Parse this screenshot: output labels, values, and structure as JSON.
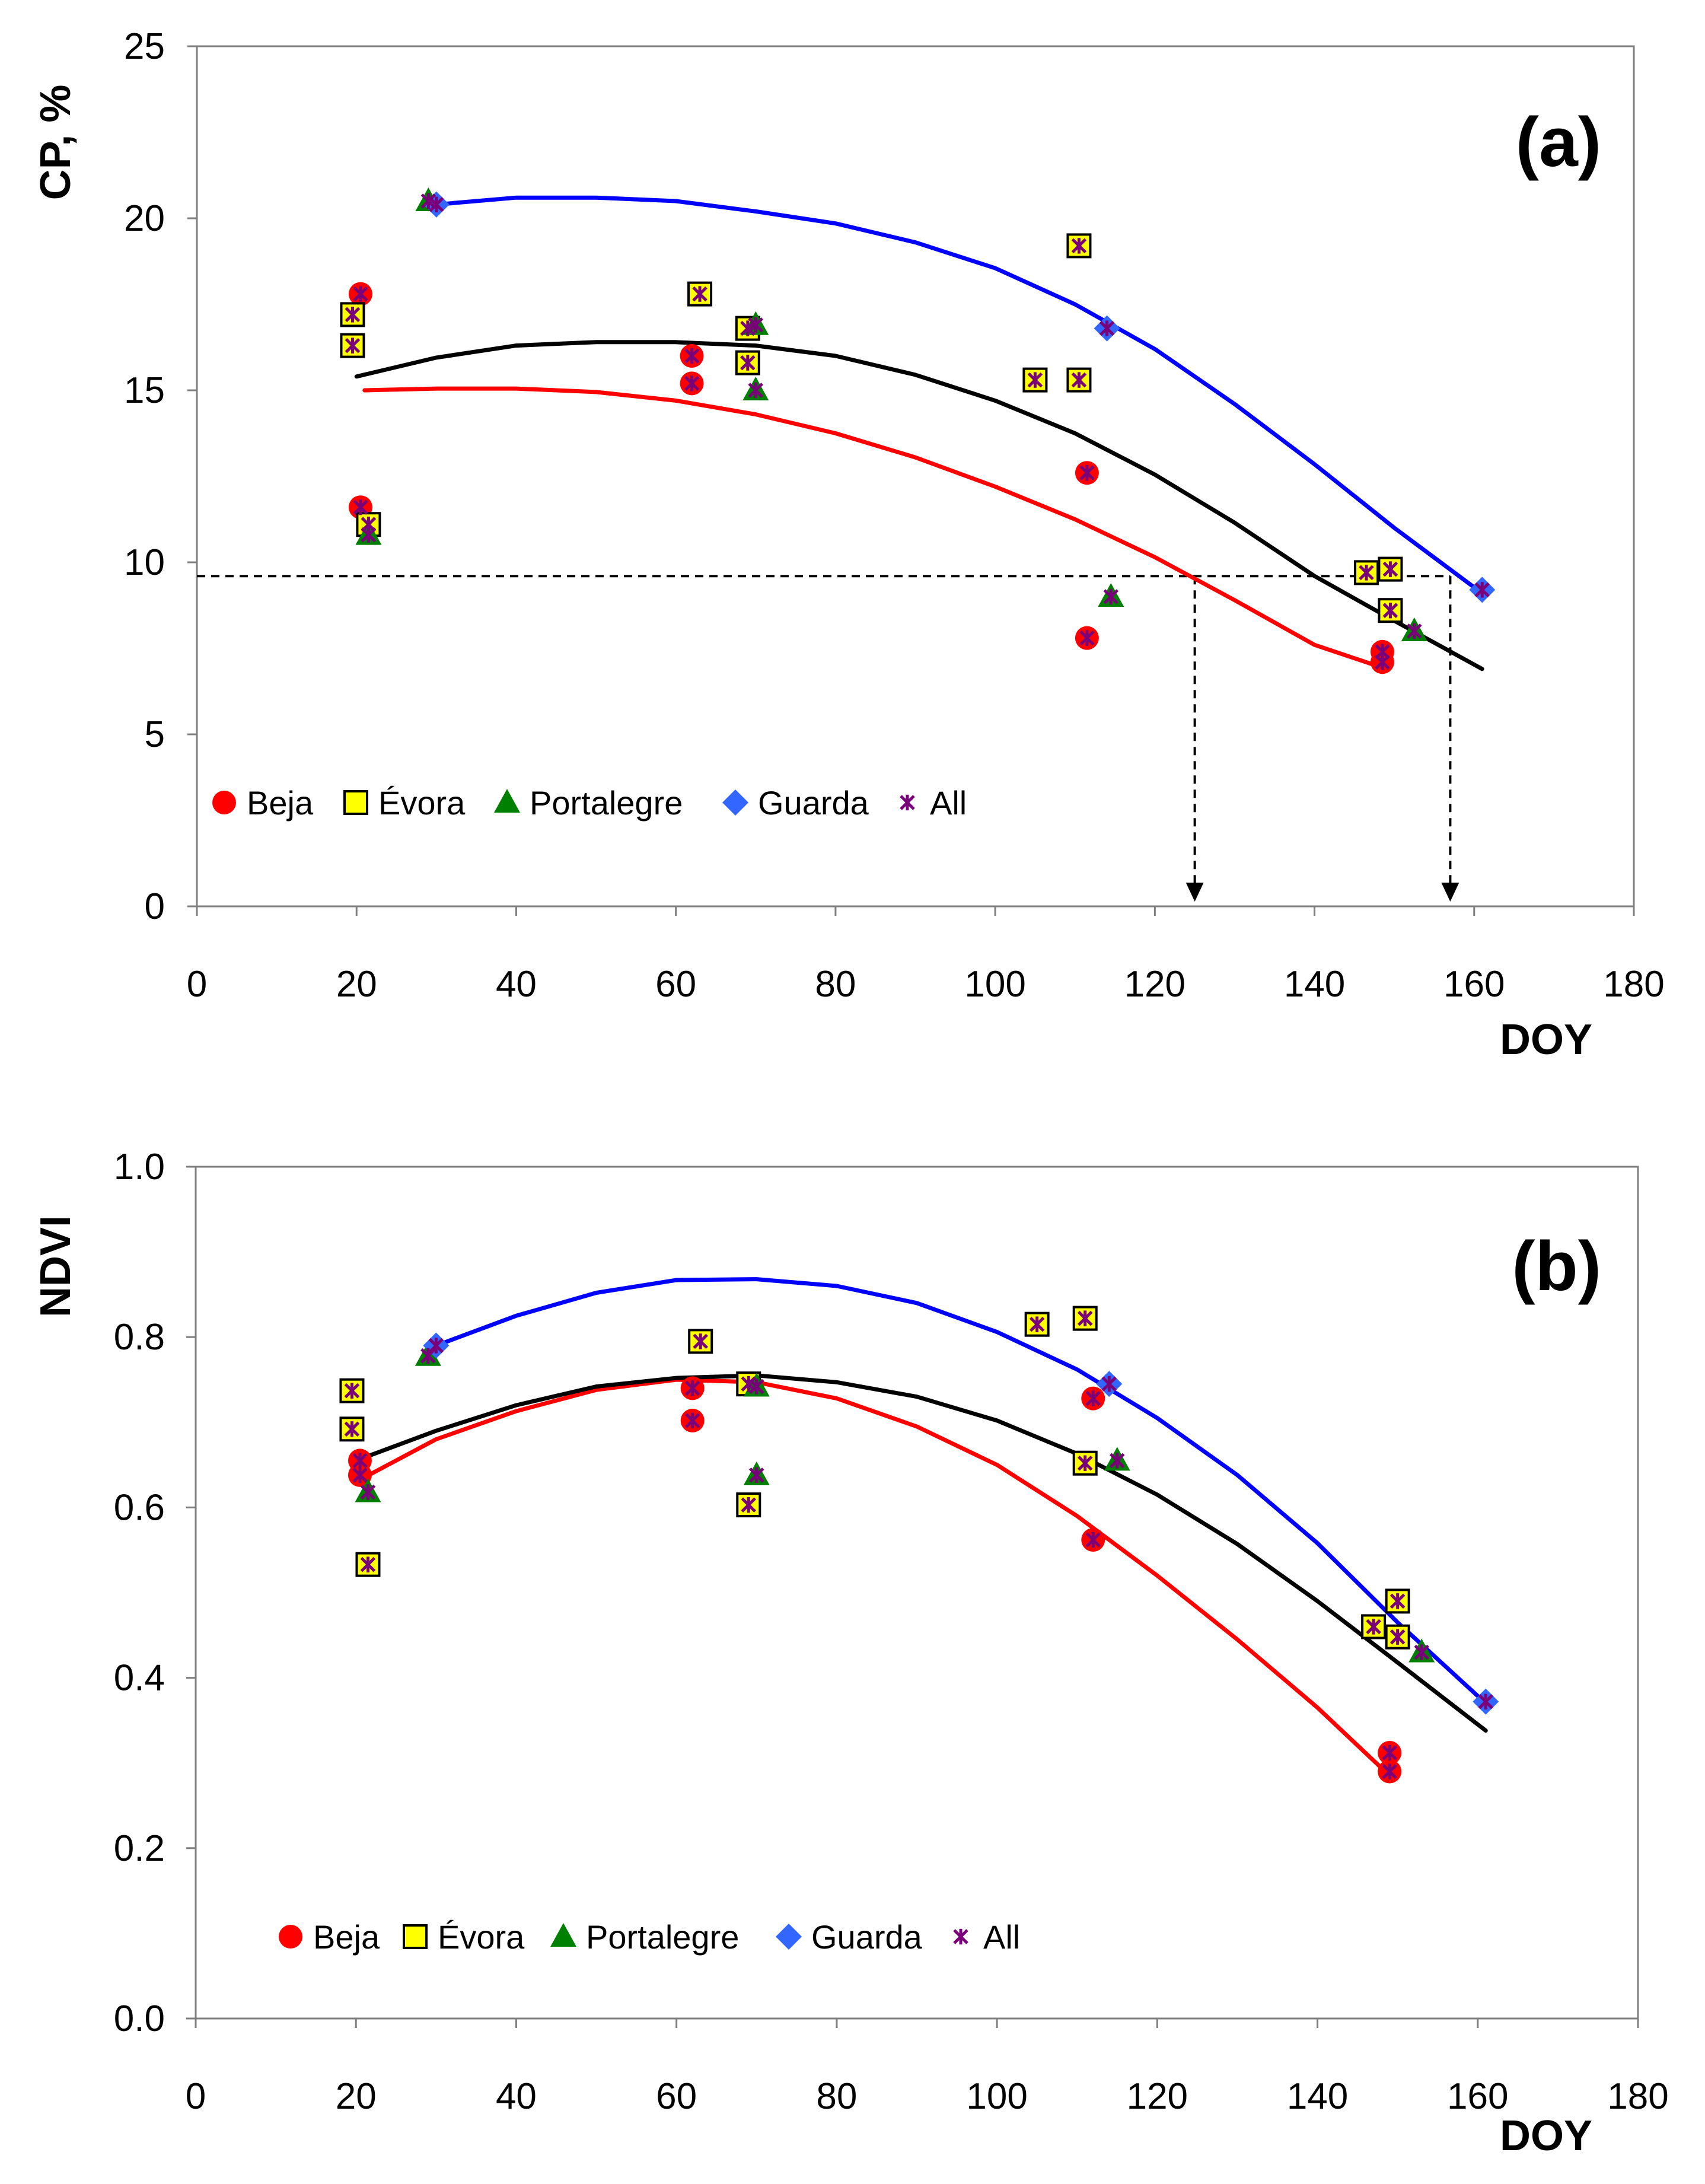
{
  "chart_data": [
    {
      "type": "scatter",
      "panel_label": "(a)",
      "ylabel": "CP, %",
      "xlabel": "DOY",
      "xlim": [
        0,
        180
      ],
      "ylim": [
        0,
        25
      ],
      "xticks": [
        "0",
        "20",
        "40",
        "60",
        "80",
        "100",
        "120",
        "140",
        "160",
        "180"
      ],
      "yticks": [
        "0",
        "5",
        "10",
        "15",
        "20",
        "25"
      ],
      "legend": [
        {
          "name": "Beja",
          "marker": "circle",
          "color": "#ff0000"
        },
        {
          "name": "Évora",
          "marker": "square",
          "color": "#ffff00"
        },
        {
          "name": "Portalegre",
          "marker": "triangle",
          "color": "#008000"
        },
        {
          "name": "Guarda",
          "marker": "diamond",
          "color": "#3366ff"
        },
        {
          "name": "All",
          "marker": "star",
          "color": "#7a007a"
        }
      ],
      "series": [
        {
          "name": "Beja",
          "points": [
            [
              20.5,
              17.8
            ],
            [
              20.5,
              11.6
            ],
            [
              62,
              16
            ],
            [
              62,
              15.2
            ],
            [
              111.5,
              12.6
            ],
            [
              111.5,
              7.8
            ],
            [
              148.5,
              7.4
            ],
            [
              148.5,
              7.1
            ]
          ]
        },
        {
          "name": "Évora",
          "points": [
            [
              19.5,
              17.2
            ],
            [
              19.5,
              16.3
            ],
            [
              21.5,
              11.1
            ],
            [
              63,
              17.8
            ],
            [
              69,
              16.8
            ],
            [
              69,
              15.8
            ],
            [
              105,
              15.3
            ],
            [
              110.5,
              19.2
            ],
            [
              110.5,
              15.3
            ],
            [
              146.5,
              9.7
            ],
            [
              149.5,
              9.8
            ],
            [
              149.5,
              8.6
            ]
          ]
        },
        {
          "name": "Portalegre",
          "points": [
            [
              21.5,
              10.8
            ],
            [
              29,
              20.5
            ],
            [
              70,
              16.9
            ],
            [
              70,
              15
            ],
            [
              114.5,
              9
            ],
            [
              152.5,
              8
            ]
          ]
        },
        {
          "name": "Guarda",
          "points": [
            [
              30,
              20.4
            ],
            [
              114,
              16.8
            ],
            [
              161,
              9.2
            ]
          ]
        },
        {
          "name": "All",
          "points": [
            [
              20.5,
              17.8
            ],
            [
              20.5,
              11.6
            ],
            [
              62,
              16
            ],
            [
              62,
              15.2
            ],
            [
              111.5,
              12.6
            ],
            [
              111.5,
              7.8
            ],
            [
              148.5,
              7.4
            ],
            [
              148.5,
              7.1
            ],
            [
              19.5,
              17.2
            ],
            [
              19.5,
              16.3
            ],
            [
              21.5,
              11.1
            ],
            [
              63,
              17.8
            ],
            [
              69,
              16.8
            ],
            [
              69,
              15.8
            ],
            [
              105,
              15.3
            ],
            [
              110.5,
              19.2
            ],
            [
              110.5,
              15.3
            ],
            [
              146.5,
              9.7
            ],
            [
              149.5,
              9.8
            ],
            [
              149.5,
              8.6
            ],
            [
              21.5,
              10.8
            ],
            [
              29,
              20.5
            ],
            [
              70,
              16.9
            ],
            [
              70,
              15
            ],
            [
              114.5,
              9
            ],
            [
              152.5,
              8
            ],
            [
              30,
              20.4
            ],
            [
              114,
              16.8
            ],
            [
              161,
              9.2
            ]
          ]
        }
      ],
      "trendlines": [
        {
          "name": "Beja",
          "color": "#ff0000",
          "points": [
            [
              21,
              15
            ],
            [
              30,
              15.05
            ],
            [
              40,
              15.05
            ],
            [
              50,
              14.95
            ],
            [
              60,
              14.7
            ],
            [
              70,
              14.3
            ],
            [
              80,
              13.75
            ],
            [
              90,
              13.05
            ],
            [
              100,
              12.2
            ],
            [
              110,
              11.25
            ],
            [
              120,
              10.15
            ],
            [
              130,
              8.9
            ],
            [
              140,
              7.6
            ],
            [
              149,
              6.9
            ]
          ]
        },
        {
          "name": "Guarda",
          "color": "#0000ff",
          "points": [
            [
              30,
              20.4
            ],
            [
              40,
              20.6
            ],
            [
              50,
              20.6
            ],
            [
              60,
              20.5
            ],
            [
              70,
              20.2
            ],
            [
              80,
              19.85
            ],
            [
              90,
              19.3
            ],
            [
              100,
              18.55
            ],
            [
              110,
              17.5
            ],
            [
              120,
              16.2
            ],
            [
              130,
              14.6
            ],
            [
              140,
              12.85
            ],
            [
              150,
              11
            ],
            [
              161,
              9.1
            ]
          ]
        },
        {
          "name": "All",
          "color": "#000000",
          "points": [
            [
              20,
              15.4
            ],
            [
              30,
              15.95
            ],
            [
              40,
              16.3
            ],
            [
              50,
              16.4
            ],
            [
              60,
              16.4
            ],
            [
              70,
              16.3
            ],
            [
              80,
              16
            ],
            [
              90,
              15.45
            ],
            [
              100,
              14.7
            ],
            [
              110,
              13.75
            ],
            [
              120,
              12.55
            ],
            [
              130,
              11.15
            ],
            [
              140,
              9.6
            ],
            [
              150,
              8.3
            ],
            [
              161,
              6.9
            ]
          ]
        }
      ],
      "reference_lines": {
        "threshold_y": 9.6,
        "drop_x": [
          125,
          157
        ]
      }
    },
    {
      "type": "scatter",
      "panel_label": "(b)",
      "ylabel": "NDVI",
      "xlabel": "DOY",
      "xlim": [
        0,
        180
      ],
      "ylim": [
        0,
        1
      ],
      "xticks": [
        "0",
        "20",
        "40",
        "60",
        "80",
        "100",
        "120",
        "140",
        "160",
        "180"
      ],
      "yticks": [
        "0.0",
        "0.2",
        "0.4",
        "0.6",
        "0.8",
        "1.0"
      ],
      "legend": [
        {
          "name": "Beja",
          "marker": "circle",
          "color": "#ff0000"
        },
        {
          "name": "Évora",
          "marker": "square",
          "color": "#ffff00"
        },
        {
          "name": "Portalegre",
          "marker": "triangle",
          "color": "#008000"
        },
        {
          "name": "Guarda",
          "marker": "diamond",
          "color": "#3366ff"
        },
        {
          "name": "All",
          "marker": "star",
          "color": "#7a007a"
        }
      ],
      "series": [
        {
          "name": "Beja",
          "points": [
            [
              20.5,
              0.655
            ],
            [
              20.5,
              0.638
            ],
            [
              62,
              0.74
            ],
            [
              62,
              0.702
            ],
            [
              112,
              0.728
            ],
            [
              112,
              0.562
            ],
            [
              149,
              0.312
            ],
            [
              149,
              0.29
            ]
          ]
        },
        {
          "name": "Évora",
          "points": [
            [
              19.5,
              0.737
            ],
            [
              19.5,
              0.692
            ],
            [
              21.5,
              0.533
            ],
            [
              63,
              0.795
            ],
            [
              69,
              0.745
            ],
            [
              69,
              0.603
            ],
            [
              105,
              0.815
            ],
            [
              111,
              0.822
            ],
            [
              111,
              0.652
            ],
            [
              147,
              0.46
            ],
            [
              150,
              0.49
            ],
            [
              150,
              0.448
            ]
          ]
        },
        {
          "name": "Portalegre",
          "points": [
            [
              21.5,
              0.618
            ],
            [
              29,
              0.778
            ],
            [
              70,
              0.742
            ],
            [
              70,
              0.638
            ],
            [
              115,
              0.655
            ],
            [
              153,
              0.43
            ]
          ]
        },
        {
          "name": "Guarda",
          "points": [
            [
              30,
              0.79
            ],
            [
              114,
              0.745
            ],
            [
              161,
              0.372
            ]
          ]
        },
        {
          "name": "All",
          "points": [
            [
              20.5,
              0.655
            ],
            [
              20.5,
              0.638
            ],
            [
              62,
              0.74
            ],
            [
              62,
              0.702
            ],
            [
              112,
              0.728
            ],
            [
              112,
              0.562
            ],
            [
              149,
              0.312
            ],
            [
              149,
              0.29
            ],
            [
              19.5,
              0.737
            ],
            [
              19.5,
              0.692
            ],
            [
              21.5,
              0.533
            ],
            [
              63,
              0.795
            ],
            [
              69,
              0.745
            ],
            [
              69,
              0.603
            ],
            [
              105,
              0.815
            ],
            [
              111,
              0.822
            ],
            [
              111,
              0.652
            ],
            [
              147,
              0.46
            ],
            [
              150,
              0.49
            ],
            [
              150,
              0.448
            ],
            [
              21.5,
              0.618
            ],
            [
              29,
              0.778
            ],
            [
              70,
              0.742
            ],
            [
              70,
              0.638
            ],
            [
              115,
              0.655
            ],
            [
              153,
              0.43
            ],
            [
              30,
              0.79
            ],
            [
              114,
              0.745
            ],
            [
              161,
              0.372
            ]
          ]
        }
      ],
      "trendlines": [
        {
          "name": "Beja",
          "color": "#ff0000",
          "points": [
            [
              21,
              0.635
            ],
            [
              30,
              0.68
            ],
            [
              40,
              0.713
            ],
            [
              50,
              0.738
            ],
            [
              60,
              0.75
            ],
            [
              70,
              0.747
            ],
            [
              80,
              0.728
            ],
            [
              90,
              0.695
            ],
            [
              100,
              0.65
            ],
            [
              110,
              0.59
            ],
            [
              120,
              0.52
            ],
            [
              130,
              0.445
            ],
            [
              140,
              0.365
            ],
            [
              149,
              0.285
            ]
          ]
        },
        {
          "name": "Guarda",
          "color": "#0000ff",
          "points": [
            [
              30,
              0.79
            ],
            [
              40,
              0.825
            ],
            [
              50,
              0.852
            ],
            [
              60,
              0.867
            ],
            [
              70,
              0.868
            ],
            [
              80,
              0.86
            ],
            [
              90,
              0.84
            ],
            [
              100,
              0.806
            ],
            [
              110,
              0.762
            ],
            [
              120,
              0.705
            ],
            [
              130,
              0.638
            ],
            [
              140,
              0.558
            ],
            [
              150,
              0.465
            ],
            [
              161,
              0.37
            ]
          ]
        },
        {
          "name": "All",
          "color": "#000000",
          "points": [
            [
              20,
              0.655
            ],
            [
              30,
              0.69
            ],
            [
              40,
              0.72
            ],
            [
              50,
              0.742
            ],
            [
              60,
              0.752
            ],
            [
              70,
              0.755
            ],
            [
              80,
              0.747
            ],
            [
              90,
              0.73
            ],
            [
              100,
              0.702
            ],
            [
              110,
              0.663
            ],
            [
              120,
              0.615
            ],
            [
              130,
              0.557
            ],
            [
              140,
              0.49
            ],
            [
              150,
              0.418
            ],
            [
              161,
              0.338
            ]
          ]
        }
      ]
    }
  ]
}
